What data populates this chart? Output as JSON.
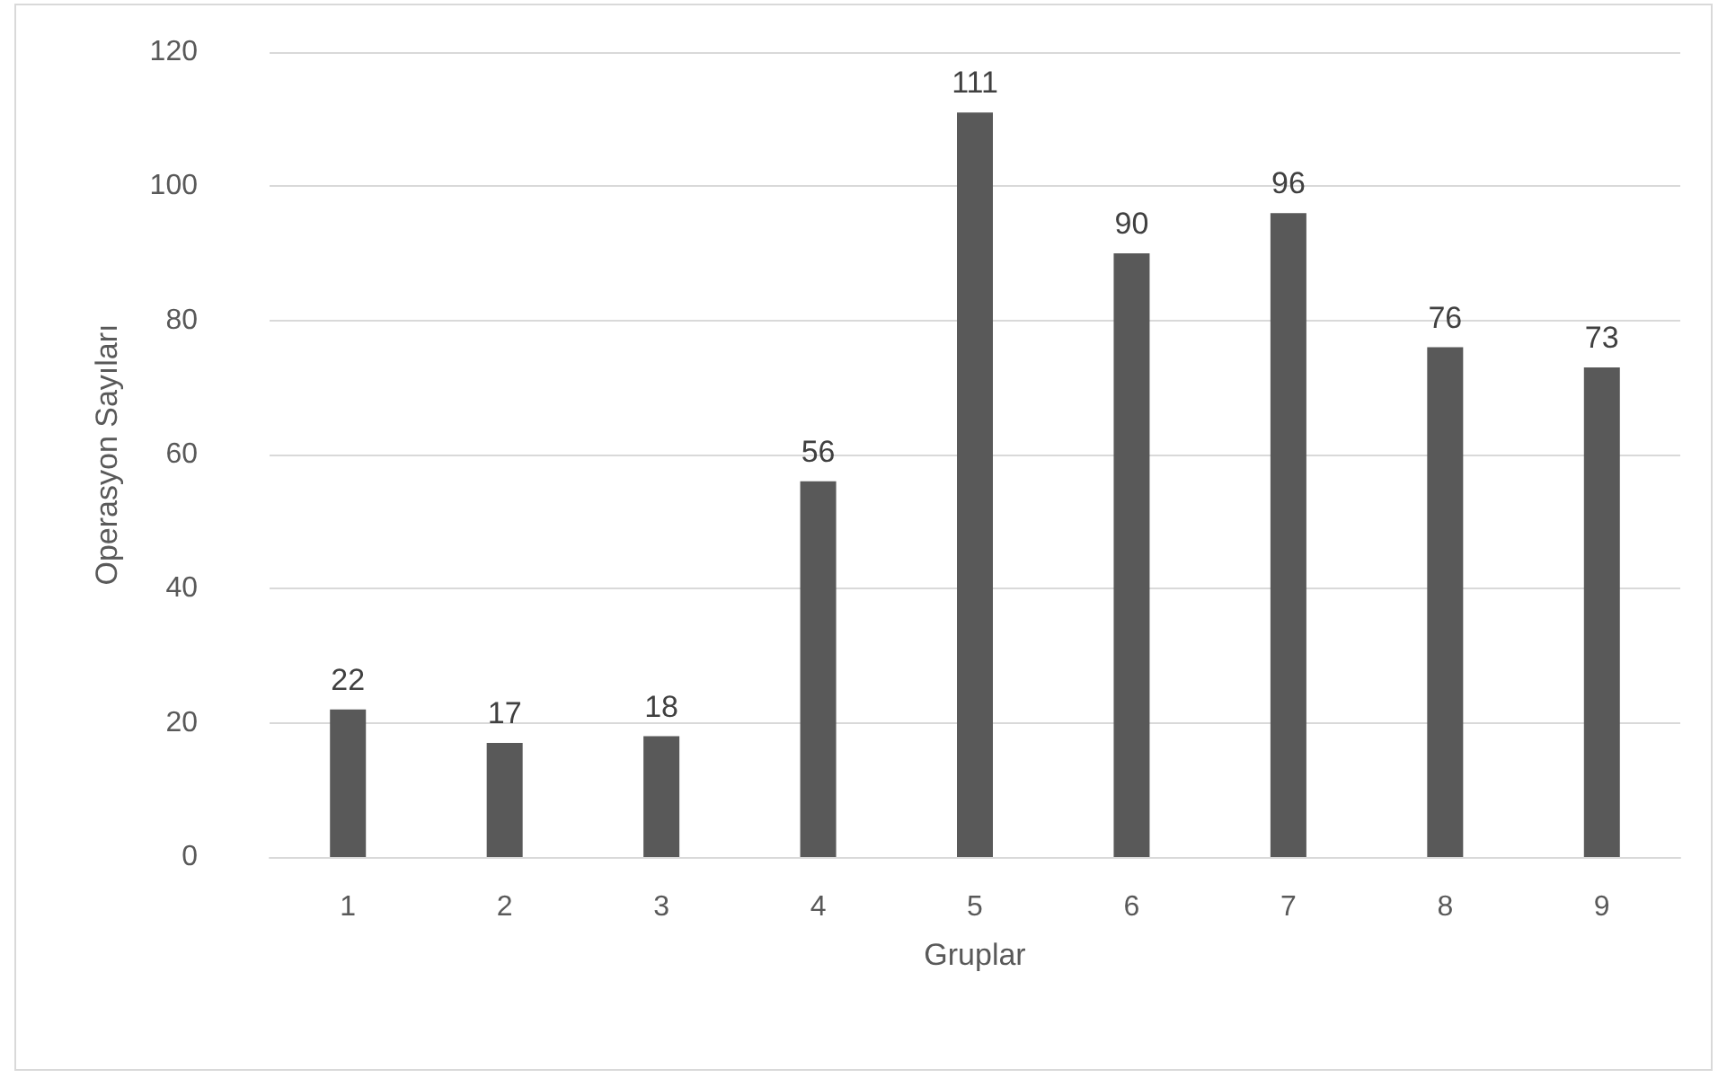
{
  "chart_data": {
    "type": "bar",
    "xlabel": "Gruplar",
    "ylabel": "Operasyon Sayıları",
    "categories": [
      "1",
      "2",
      "3",
      "4",
      "5",
      "6",
      "7",
      "8",
      "9"
    ],
    "values": [
      22,
      17,
      18,
      56,
      111,
      90,
      96,
      76,
      73
    ],
    "color": "#595959",
    "ylim": [
      0,
      120
    ],
    "yticks": [
      0,
      20,
      40,
      60,
      80,
      100,
      120
    ],
    "grid": "y",
    "data_labels": true
  }
}
